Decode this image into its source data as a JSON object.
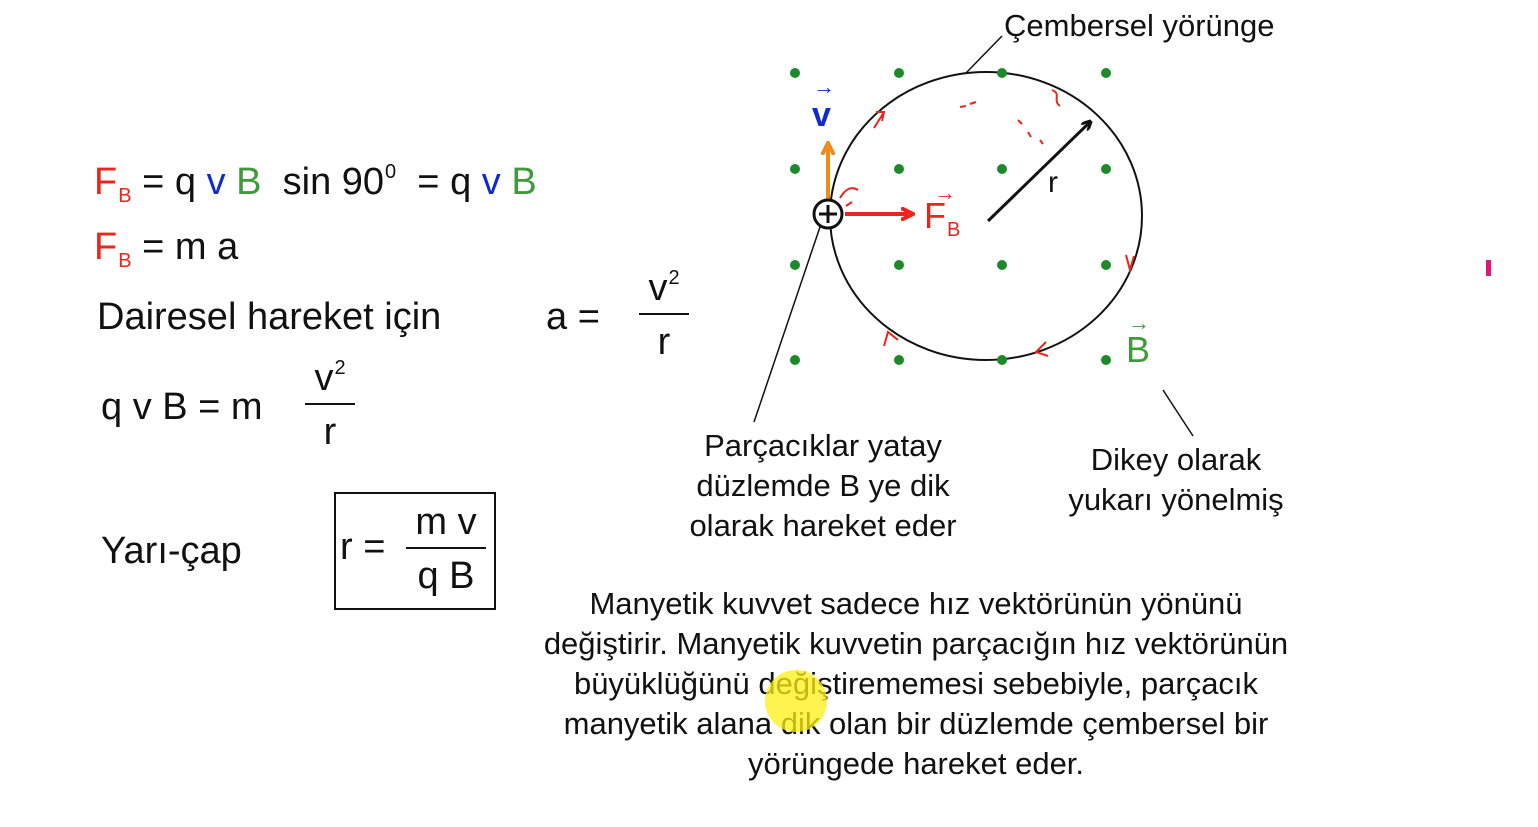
{
  "equations": {
    "eq1": {
      "F": "F",
      "B_sub": "B",
      "eq": "=",
      "q": "q",
      "v": "v",
      "B": "B",
      "sin": "sin 90",
      "deg": "0",
      "eq2": "=",
      "q2": "q",
      "v2": "v",
      "B2": "B"
    },
    "eq2": {
      "F": "F",
      "B_sub": "B",
      "rest": "= m  a"
    },
    "circular": {
      "label": "Dairesel hareket için",
      "a": "a  =",
      "num": "v",
      "num_sup": "2",
      "den": "r"
    },
    "eq3": {
      "lhs": "q  v  B  =  m",
      "num": "v",
      "num_sup": "2",
      "den": "r"
    },
    "radius": {
      "label": "Yarı-çap",
      "lhs": "r =",
      "num": "m  v",
      "den": "q  B"
    }
  },
  "diagram": {
    "orbit_label": "Çembersel yörünge",
    "v_label": "v",
    "v_arrow": "→",
    "F_label": "F",
    "F_sub": "B",
    "F_arrow": "→",
    "r_label": "r",
    "B_label": "B",
    "B_arrow": "→",
    "colors": {
      "orbit": "#111111",
      "dots": "#1d8a2a",
      "velocity": "#f08a1c",
      "force": "#e8261c",
      "radius": "#111111"
    }
  },
  "captions": {
    "particles": [
      "Parçacıklar yatay",
      "düzlemde B ye dik",
      "olarak hareket eder"
    ],
    "vertical": [
      "Dikey olarak",
      "yukarı yönelmiş"
    ],
    "paragraph": [
      "Manyetik kuvvet sadece hız vektörünün yönünü",
      "değiştirir. Manyetik kuvvetin parçacığın hız vektörünün",
      "büyüklüğünü değiştirememesi sebebiyle, parçacık",
      "manyetik alana dik olan bir düzlemde çembersel bir",
      "yörüngede hareket eder."
    ]
  }
}
